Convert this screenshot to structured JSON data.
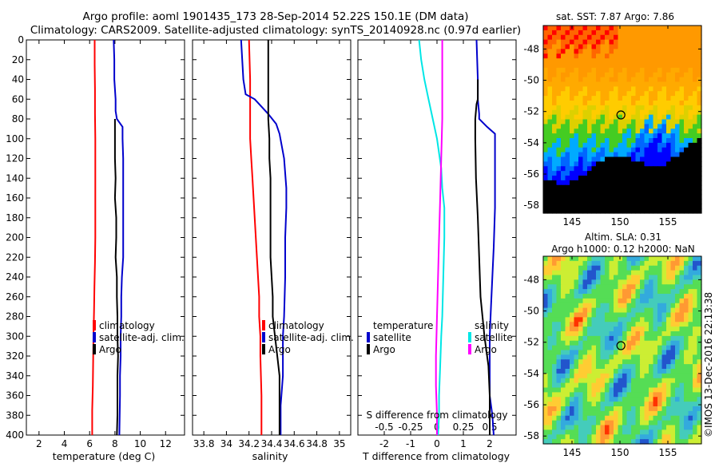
{
  "header": {
    "line1": "Argo profile: aoml 1901435_173 28-Sep-2014 52.22S 150.1E (DM data)",
    "line2": "Climatology: CARS2009. Satellite-adjusted climatology: synTS_20140928.nc (0.97d earlier)"
  },
  "chart_data": [
    {
      "type": "line",
      "title": "",
      "xlabel": "temperature (deg C)",
      "ylabel": "",
      "xlim": [
        1,
        13.5
      ],
      "ylim": [
        400,
        0
      ],
      "xticks": [
        2,
        4,
        6,
        8,
        10,
        12
      ],
      "yticks": [
        0,
        20,
        40,
        60,
        80,
        100,
        120,
        140,
        160,
        180,
        200,
        220,
        240,
        260,
        280,
        300,
        320,
        340,
        360,
        380,
        400
      ],
      "legend": [
        "climatology",
        "satellite-adj. clim.",
        "Argo"
      ],
      "series": [
        {
          "name": "climatology",
          "color": "#ff0000",
          "x": [
            6.4,
            6.4,
            6.42,
            6.42,
            6.45,
            6.45,
            6.45,
            6.45,
            6.45,
            6.42,
            6.38,
            6.35,
            6.3,
            6.28,
            6.25,
            6.2,
            6.2
          ],
          "y": [
            0,
            25,
            50,
            75,
            100,
            125,
            150,
            175,
            200,
            225,
            250,
            275,
            300,
            325,
            350,
            375,
            400
          ]
        },
        {
          "name": "satellite-adj. clim.",
          "color": "#0000cc",
          "x": [
            7.9,
            7.95,
            7.95,
            8.05,
            8.05,
            8.15,
            8.6,
            8.6,
            8.65,
            8.65,
            8.65,
            8.65,
            8.65,
            8.65,
            8.55,
            8.5,
            8.5,
            8.45,
            8.45,
            8.4,
            8.4,
            8.35
          ],
          "y": [
            0,
            20,
            40,
            60,
            72,
            80,
            88,
            100,
            120,
            140,
            160,
            180,
            200,
            220,
            240,
            260,
            280,
            300,
            320,
            340,
            360,
            400
          ]
        },
        {
          "name": "Argo",
          "color": "#000000",
          "x": [
            8.0,
            8.0,
            8.0,
            8.05,
            8.0,
            8.1,
            8.1,
            8.05,
            8.15,
            8.15,
            8.2,
            8.2,
            8.25,
            8.2,
            8.2,
            8.2,
            8.15
          ],
          "y": [
            80,
            100,
            120,
            140,
            160,
            180,
            200,
            220,
            240,
            260,
            280,
            300,
            320,
            340,
            360,
            380,
            400
          ]
        }
      ]
    },
    {
      "type": "line",
      "title": "",
      "xlabel": "salinity",
      "ylabel": "",
      "xlim": [
        33.7,
        35.1
      ],
      "ylim": [
        400,
        0
      ],
      "xticks": [
        33.8,
        34,
        34.2,
        34.4,
        34.6,
        34.8,
        35
      ],
      "xticklabels": [
        "33.8",
        "34",
        "34.2",
        "34.4",
        "34.6",
        "34.8",
        "35"
      ],
      "yticks": [],
      "legend": [
        "climatology",
        "satellite-adj. clim.",
        "Argo"
      ],
      "series": [
        {
          "name": "climatology",
          "color": "#ff0000",
          "x": [
            34.2,
            34.21,
            34.21,
            34.21,
            34.22,
            34.23,
            34.24,
            34.25,
            34.26,
            34.27,
            34.28,
            34.29,
            34.29,
            34.3,
            34.3,
            34.31,
            34.31
          ],
          "y": [
            0,
            40,
            80,
            100,
            120,
            140,
            160,
            180,
            200,
            220,
            240,
            260,
            280,
            300,
            320,
            360,
            400
          ]
        },
        {
          "name": "satellite-adj. clim.",
          "color": "#0000cc",
          "x": [
            34.13,
            34.14,
            34.15,
            34.17,
            34.25,
            34.37,
            34.44,
            34.47,
            34.51,
            34.53,
            34.53,
            34.52,
            34.52,
            34.51,
            34.5,
            34.5,
            34.5,
            34.48,
            34.48
          ],
          "y": [
            0,
            20,
            40,
            55,
            60,
            75,
            85,
            95,
            120,
            150,
            170,
            200,
            240,
            280,
            300,
            320,
            340,
            370,
            400
          ]
        },
        {
          "name": "Argo",
          "color": "#000000",
          "x": [
            34.37,
            34.37,
            34.37,
            34.37,
            34.38,
            34.38,
            34.39,
            34.39,
            34.39,
            34.39,
            34.39,
            34.4,
            34.41,
            34.41,
            34.43,
            34.45,
            34.47,
            34.47
          ],
          "y": [
            0,
            40,
            60,
            80,
            100,
            120,
            140,
            160,
            180,
            200,
            220,
            240,
            260,
            280,
            300,
            320,
            340,
            400
          ]
        }
      ]
    },
    {
      "type": "line",
      "title": "S difference from climatology",
      "xlabel": "T difference from climatology",
      "ylabel": "",
      "xlim": [
        -3,
        3
      ],
      "ylim": [
        400,
        0
      ],
      "xticks": [
        -2,
        -1,
        0,
        1,
        2
      ],
      "secondary_xticks": [
        -0.5,
        -0.25,
        0,
        0.25,
        0.5
      ],
      "secondary_xticklabels": [
        "-0.5",
        "-0.25",
        "0",
        "0.25",
        "0.5"
      ],
      "yticks": [],
      "legend": [
        "temperature: satellite",
        "temperature: Argo",
        "salinity: satellite",
        "salinity: Argo"
      ],
      "series": [
        {
          "name": "temperature satellite",
          "color": "#0000cc",
          "x": [
            1.5,
            1.55,
            1.55,
            1.6,
            1.6,
            1.9,
            2.2,
            2.2,
            2.2,
            2.15,
            2.1,
            2.05,
            2.0,
            2.0,
            2.0,
            2.1,
            2.15
          ],
          "y": [
            0,
            40,
            60,
            75,
            80,
            88,
            95,
            130,
            170,
            210,
            240,
            270,
            300,
            330,
            360,
            380,
            400
          ]
        },
        {
          "name": "temperature Argo",
          "color": "#000000",
          "x": [
            1.55,
            1.55,
            1.5,
            1.45,
            1.45,
            1.48,
            1.55,
            1.6,
            1.65,
            1.8,
            1.95,
            2.0,
            2.0
          ],
          "y": [
            40,
            60,
            65,
            80,
            100,
            140,
            180,
            220,
            260,
            300,
            330,
            360,
            400
          ]
        },
        {
          "name": "salinity satellite",
          "color": "#00e6e6",
          "x": [
            -0.17,
            -0.15,
            -0.12,
            -0.08,
            -0.04,
            0.0,
            0.04,
            0.05,
            0.07,
            0.07,
            0.06,
            0.05,
            0.04,
            0.03,
            0.02,
            0.02,
            0.01
          ],
          "y": [
            0,
            20,
            40,
            60,
            80,
            100,
            130,
            150,
            170,
            200,
            240,
            280,
            300,
            330,
            360,
            380,
            400
          ]
        },
        {
          "name": "salinity Argo",
          "color": "#ff00ff",
          "x": [
            0.05,
            0.05,
            0.04,
            0.03,
            0.02,
            0.01,
            0.0,
            -0.01,
            -0.01,
            0.0,
            0.0
          ],
          "y": [
            0,
            80,
            120,
            160,
            200,
            240,
            280,
            320,
            350,
            380,
            400
          ]
        }
      ]
    },
    {
      "type": "heatmap",
      "title": "sat. SST: 7.87 Argo: 7.86",
      "xlim": [
        142,
        158.5
      ],
      "ylim": [
        -58.5,
        -46.5
      ],
      "xticks": [
        145,
        150,
        155
      ],
      "yticks": [
        -48,
        -50,
        -52,
        -54,
        -56,
        -58
      ],
      "marker": {
        "lon": 150.1,
        "lat": -52.22
      }
    },
    {
      "type": "heatmap",
      "title": "Altim. SLA: 0.31",
      "subtitle": "Argo h1000: 0.12 h2000: NaN",
      "xlim": [
        142,
        158.5
      ],
      "ylim": [
        -58.5,
        -46.5
      ],
      "xticks": [
        145,
        150,
        155
      ],
      "yticks": [
        -48,
        -50,
        -52,
        -54,
        -56,
        -58
      ],
      "marker": {
        "lon": 150.1,
        "lat": -52.22
      }
    }
  ],
  "watermark": "©IMOS 13-Dec-2016 22:13:38",
  "legends": {
    "p1": [
      "climatology",
      "satellite-adj. clim.",
      "Argo"
    ],
    "p2": [
      "climatology",
      "satellite-adj. clim.",
      "Argo"
    ],
    "p3_left_title": "temperature",
    "p3_left": [
      "satellite",
      "Argo"
    ],
    "p3_right_title": "salinity",
    "p3_right": [
      "satellite",
      "Argo"
    ]
  },
  "colors": {
    "climatology": "#ff0000",
    "satellite": "#0000cc",
    "argo": "#000000",
    "sal_satellite": "#00e6e6",
    "sal_argo": "#ff00ff"
  }
}
